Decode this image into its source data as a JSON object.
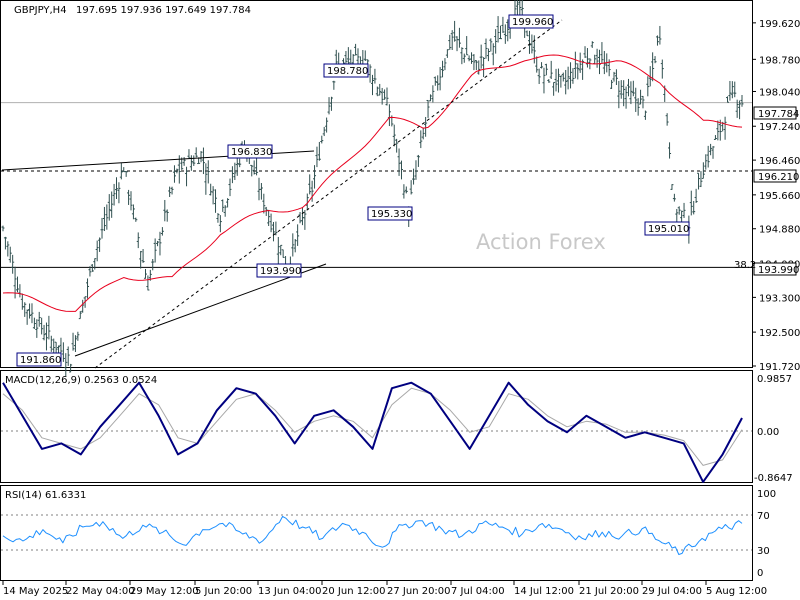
{
  "header": {
    "symbol_tf": "GBPJPY,H4",
    "ohlc": "197.695 197.936 197.649 197.784"
  },
  "watermark": "Action Forex",
  "colors": {
    "price": "#2f4f4f",
    "ma": "#e8001e",
    "macd": "#000080",
    "signal": "#a8a8a8",
    "rsi": "#1e90ff",
    "grid": "#c0c0c0"
  },
  "price_panel": {
    "ylim": [
      191.72,
      200.1
    ],
    "y_ticks": [
      "199.620",
      "198.780",
      "198.040",
      "197.240",
      "196.460",
      "195.660",
      "194.880",
      "194.080",
      "193.300",
      "192.500",
      "191.720"
    ],
    "current_price": "197.784",
    "level_196": "196.210",
    "level_193": "193.990",
    "fib_label": "38.2",
    "annotations": [
      "191.860",
      "196.830",
      "193.990",
      "198.780",
      "195.330",
      "199.960",
      "195.010"
    ]
  },
  "macd_panel": {
    "title": "MACD(12,26,9) 0.2563 0.0524",
    "y_ticks": [
      "0.9857",
      "0.00",
      "-0.8647"
    ],
    "current_label": "0.00"
  },
  "rsi_panel": {
    "title": "RSI(14) 61.6331",
    "y_ticks": [
      "100",
      "70",
      "30",
      "0"
    ]
  },
  "x_labels": [
    "14 May 2025",
    "22 May 04:00",
    "29 May 12:00",
    "5 Jun 20:00",
    "13 Jun 04:00",
    "20 Jun 12:00",
    "27 Jun 20:00",
    "7 Jul 04:00",
    "14 Jul 12:00",
    "21 Jul 20:00",
    "29 Jul 04:00",
    "5 Aug 12:00"
  ],
  "chart_data": [
    {
      "type": "line",
      "title": "GBPJPY,H4",
      "ylim": [
        191.72,
        200.1
      ],
      "anchor_points": [
        {
          "bar": 0,
          "price": 194.9
        },
        {
          "bar": 8,
          "price": 193.2
        },
        {
          "bar": 20,
          "price": 192.3
        },
        {
          "bar": 28,
          "price": 191.86
        },
        {
          "bar": 38,
          "price": 194.3
        },
        {
          "bar": 50,
          "price": 196.3
        },
        {
          "bar": 60,
          "price": 193.6
        },
        {
          "bar": 72,
          "price": 196.2
        },
        {
          "bar": 82,
          "price": 196.6
        },
        {
          "bar": 90,
          "price": 195.2
        },
        {
          "bar": 100,
          "price": 196.83
        },
        {
          "bar": 110,
          "price": 195.2
        },
        {
          "bar": 118,
          "price": 193.99
        },
        {
          "bar": 128,
          "price": 195.8
        },
        {
          "bar": 138,
          "price": 198.6
        },
        {
          "bar": 150,
          "price": 198.78
        },
        {
          "bar": 160,
          "price": 197.6
        },
        {
          "bar": 168,
          "price": 195.33
        },
        {
          "bar": 176,
          "price": 197.6
        },
        {
          "bar": 186,
          "price": 199.3
        },
        {
          "bar": 196,
          "price": 198.6
        },
        {
          "bar": 208,
          "price": 199.5
        },
        {
          "bar": 214,
          "price": 199.96
        },
        {
          "bar": 222,
          "price": 198.5
        },
        {
          "bar": 232,
          "price": 198.2
        },
        {
          "bar": 244,
          "price": 199.0
        },
        {
          "bar": 256,
          "price": 198.1
        },
        {
          "bar": 266,
          "price": 197.7
        },
        {
          "bar": 272,
          "price": 199.4
        },
        {
          "bar": 278,
          "price": 195.4
        },
        {
          "bar": 284,
          "price": 195.01
        },
        {
          "bar": 290,
          "price": 196.3
        },
        {
          "bar": 296,
          "price": 197.0
        },
        {
          "bar": 302,
          "price": 198.0
        },
        {
          "bar": 306,
          "price": 197.784
        }
      ],
      "ma_points": [
        {
          "bar": 0,
          "price": 193.4
        },
        {
          "bar": 30,
          "price": 193.0
        },
        {
          "bar": 50,
          "price": 193.8
        },
        {
          "bar": 70,
          "price": 193.7
        },
        {
          "bar": 90,
          "price": 194.8
        },
        {
          "bar": 110,
          "price": 195.3
        },
        {
          "bar": 125,
          "price": 195.4
        },
        {
          "bar": 145,
          "price": 196.6
        },
        {
          "bar": 160,
          "price": 197.4
        },
        {
          "bar": 175,
          "price": 197.2
        },
        {
          "bar": 195,
          "price": 198.4
        },
        {
          "bar": 215,
          "price": 198.8
        },
        {
          "bar": 235,
          "price": 198.8
        },
        {
          "bar": 255,
          "price": 198.7
        },
        {
          "bar": 272,
          "price": 198.3
        },
        {
          "bar": 290,
          "price": 197.3
        },
        {
          "bar": 306,
          "price": 197.3
        }
      ]
    },
    {
      "type": "line",
      "title": "MACD(12,26,9)",
      "series": [
        {
          "name": "MACD",
          "values": [
            0.9,
            0.3,
            -0.3,
            -0.2,
            -0.4,
            0.1,
            0.5,
            0.9,
            0.3,
            -0.4,
            -0.2,
            0.4,
            0.8,
            0.7,
            0.3,
            -0.2,
            0.3,
            0.4,
            0.1,
            -0.3,
            0.8,
            0.9,
            0.7,
            0.2,
            -0.3,
            0.3,
            0.9,
            0.5,
            0.2,
            0.0,
            0.3,
            0.1,
            -0.1,
            0.0,
            -0.1,
            -0.2,
            -0.9,
            -0.4,
            0.26
          ]
        },
        {
          "name": "Signal",
          "values": [
            0.7,
            0.4,
            -0.1,
            -0.2,
            -0.3,
            -0.1,
            0.3,
            0.7,
            0.5,
            -0.1,
            -0.2,
            0.2,
            0.6,
            0.7,
            0.4,
            0.0,
            0.2,
            0.3,
            0.2,
            -0.1,
            0.5,
            0.8,
            0.7,
            0.4,
            0.0,
            0.1,
            0.7,
            0.6,
            0.3,
            0.1,
            0.2,
            0.15,
            0.0,
            0.0,
            -0.05,
            -0.15,
            -0.6,
            -0.5,
            0.05
          ]
        }
      ]
    },
    {
      "type": "line",
      "title": "RSI(14)",
      "ylim": [
        0,
        100
      ],
      "series": [
        {
          "name": "RSI",
          "values": [
            48,
            42,
            55,
            40,
            58,
            64,
            45,
            60,
            52,
            38,
            55,
            62,
            50,
            42,
            70,
            58,
            45,
            62,
            52,
            35,
            60,
            65,
            55,
            48,
            62,
            58,
            50,
            62,
            55,
            45,
            52,
            48,
            56,
            40,
            28,
            45,
            56,
            62
          ]
        }
      ]
    }
  ]
}
